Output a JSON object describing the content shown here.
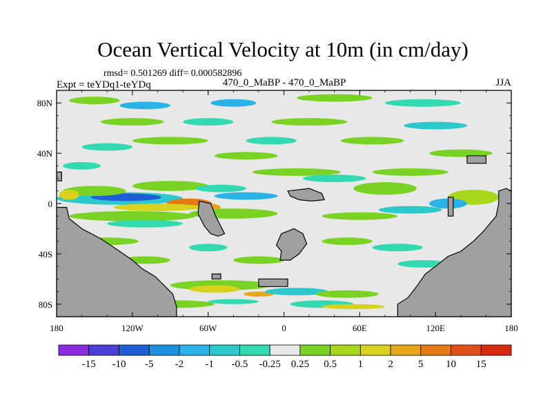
{
  "chart_data": {
    "type": "heatmap",
    "title": "Ocean Vertical Velocity at 10m (in cm/day)",
    "stats_line": "rmsd= 0.501269 diff= 0.000582896",
    "left_label": "Expt = teYDq1-teYDq",
    "center_label": "470_0_MaBP - 470_0_MaBP",
    "right_label": "JJA",
    "x_range": [
      -180,
      180
    ],
    "y_range": [
      -90,
      90
    ],
    "x_ticks": [
      {
        "value": -180,
        "label": "180"
      },
      {
        "value": -120,
        "label": "120W"
      },
      {
        "value": -60,
        "label": "60W"
      },
      {
        "value": 0,
        "label": "0"
      },
      {
        "value": 60,
        "label": "60E"
      },
      {
        "value": 120,
        "label": "120E"
      },
      {
        "value": 180,
        "label": "180"
      }
    ],
    "y_ticks": [
      {
        "value": 80,
        "label": "80N"
      },
      {
        "value": 40,
        "label": "40N"
      },
      {
        "value": 0,
        "label": "0"
      },
      {
        "value": -40,
        "label": "40S"
      },
      {
        "value": -80,
        "label": "80S"
      }
    ],
    "colorbar": {
      "labels": [
        "-15",
        "-10",
        "-5",
        "-2",
        "-1",
        "-0.5",
        "-0.25",
        "0.25",
        "0.5",
        "1",
        "2",
        "5",
        "10",
        "15"
      ],
      "colors": [
        "#8a2be2",
        "#4b3fd8",
        "#1f5fd6",
        "#1f8fe0",
        "#29b3e6",
        "#2cc8cc",
        "#33d9b0",
        "#e8e8e8",
        "#7ad324",
        "#a8d81c",
        "#d8d21c",
        "#e6a81a",
        "#e47a14",
        "#e0501a",
        "#d92a10"
      ]
    },
    "land_color": "#a0a0a0",
    "zero_band_color": "#e8e8e8",
    "regions": [
      {
        "name": "equatorial-upwelling-blue",
        "c": 5,
        "lon": -130,
        "lat": 4,
        "w": 50,
        "h": 5
      },
      {
        "name": "equatorial-strong-blue",
        "c": 2,
        "lon": -125,
        "lat": 5,
        "w": 28,
        "h": 3
      },
      {
        "name": "eq-blue-east",
        "c": 4,
        "lon": -30,
        "lat": 6,
        "w": 25,
        "h": 3
      },
      {
        "name": "eq-orange",
        "c": 12,
        "lon": -75,
        "lat": 0,
        "w": 18,
        "h": 4
      },
      {
        "name": "eq-orange-2",
        "c": 11,
        "lon": -60,
        "lat": -3,
        "w": 10,
        "h": 3
      },
      {
        "name": "eq-yellow",
        "c": 10,
        "lon": -100,
        "lat": -3,
        "w": 35,
        "h": 3
      },
      {
        "name": "eq-green-belt",
        "c": 8,
        "lon": -120,
        "lat": -10,
        "w": 50,
        "h": 4
      },
      {
        "name": "eq-green-belt-2",
        "c": 8,
        "lon": -40,
        "lat": -8,
        "w": 35,
        "h": 4
      },
      {
        "name": "eq-green-belt-3",
        "c": 8,
        "lon": -150,
        "lat": 10,
        "w": 25,
        "h": 4
      },
      {
        "name": "eq-green-belt-4",
        "c": 8,
        "lon": -90,
        "lat": 14,
        "w": 30,
        "h": 4
      },
      {
        "name": "eq-yellow-west",
        "c": 10,
        "lon": -170,
        "lat": 7,
        "w": 8,
        "h": 4
      },
      {
        "name": "eq-cyan-belt",
        "c": 6,
        "lon": -110,
        "lat": -16,
        "w": 30,
        "h": 3
      },
      {
        "name": "eq-cyan-belt-2",
        "c": 6,
        "lon": -50,
        "lat": 12,
        "w": 20,
        "h": 3
      },
      {
        "name": "io-green",
        "c": 8,
        "lon": 80,
        "lat": 12,
        "w": 25,
        "h": 5
      },
      {
        "name": "io-green-2",
        "c": 9,
        "lon": 150,
        "lat": 5,
        "w": 20,
        "h": 6
      },
      {
        "name": "io-blue",
        "c": 4,
        "lon": 130,
        "lat": 0,
        "w": 15,
        "h": 4
      },
      {
        "name": "io-cyan",
        "c": 5,
        "lon": 100,
        "lat": -5,
        "w": 25,
        "h": 3
      },
      {
        "name": "io-green-3",
        "c": 8,
        "lon": 60,
        "lat": -10,
        "w": 30,
        "h": 3
      },
      {
        "name": "io-cyan-2",
        "c": 6,
        "lon": 40,
        "lat": 20,
        "w": 25,
        "h": 3
      },
      {
        "name": "io-green-4",
        "c": 8,
        "lon": 100,
        "lat": 25,
        "w": 30,
        "h": 3
      },
      {
        "name": "io-green-5",
        "c": 8,
        "lon": 10,
        "lat": 25,
        "w": 35,
        "h": 3
      },
      {
        "name": "n-hemi-blue",
        "c": 4,
        "lon": -110,
        "lat": 78,
        "w": 20,
        "h": 3
      },
      {
        "name": "n-hemi-blue-2",
        "c": 4,
        "lon": -40,
        "lat": 80,
        "w": 18,
        "h": 3
      },
      {
        "name": "n-hemi-green",
        "c": 8,
        "lon": -150,
        "lat": 82,
        "w": 20,
        "h": 3
      },
      {
        "name": "n-hemi-green-2",
        "c": 8,
        "lon": 40,
        "lat": 84,
        "w": 30,
        "h": 3
      },
      {
        "name": "n-hemi-cyan",
        "c": 6,
        "lon": 110,
        "lat": 80,
        "w": 30,
        "h": 3
      },
      {
        "name": "n-hemi-green-3",
        "c": 8,
        "lon": -120,
        "lat": 65,
        "w": 25,
        "h": 3
      },
      {
        "name": "n-hemi-cyan-2",
        "c": 6,
        "lon": -60,
        "lat": 65,
        "w": 20,
        "h": 3
      },
      {
        "name": "n-hemi-green-4",
        "c": 8,
        "lon": 20,
        "lat": 65,
        "w": 30,
        "h": 3
      },
      {
        "name": "n-hemi-blue-3",
        "c": 5,
        "lon": 120,
        "lat": 62,
        "w": 25,
        "h": 3
      },
      {
        "name": "n-hemi-green-5",
        "c": 8,
        "lon": -90,
        "lat": 50,
        "w": 30,
        "h": 3
      },
      {
        "name": "n-hemi-cyan-3",
        "c": 6,
        "lon": -10,
        "lat": 50,
        "w": 20,
        "h": 3
      },
      {
        "name": "n-hemi-green-6",
        "c": 8,
        "lon": 70,
        "lat": 50,
        "w": 25,
        "h": 3
      },
      {
        "name": "n-hemi-cyan-4",
        "c": 6,
        "lon": -140,
        "lat": 45,
        "w": 20,
        "h": 3
      },
      {
        "name": "n-hemi-green-7",
        "c": 8,
        "lon": -30,
        "lat": 38,
        "w": 25,
        "h": 3
      },
      {
        "name": "n-hemi-green-8",
        "c": 8,
        "lon": 140,
        "lat": 40,
        "w": 25,
        "h": 3
      },
      {
        "name": "n-hemi-cyan-5",
        "c": 6,
        "lon": -160,
        "lat": 30,
        "w": 15,
        "h": 3
      },
      {
        "name": "s-hemi-green",
        "c": 8,
        "lon": -140,
        "lat": -30,
        "w": 25,
        "h": 3
      },
      {
        "name": "s-hemi-cyan",
        "c": 6,
        "lon": -60,
        "lat": -35,
        "w": 15,
        "h": 3
      },
      {
        "name": "s-hemi-green-2",
        "c": 8,
        "lon": 50,
        "lat": -30,
        "w": 20,
        "h": 3
      },
      {
        "name": "s-hemi-cyan-2",
        "c": 6,
        "lon": 90,
        "lat": -35,
        "w": 20,
        "h": 3
      },
      {
        "name": "s-hemi-green-3",
        "c": 8,
        "lon": -110,
        "lat": -45,
        "w": 20,
        "h": 3
      },
      {
        "name": "s-hemi-green-4",
        "c": 8,
        "lon": -20,
        "lat": -45,
        "w": 20,
        "h": 3
      },
      {
        "name": "s-hemi-cyan-3",
        "c": 6,
        "lon": 110,
        "lat": -48,
        "w": 20,
        "h": 3
      },
      {
        "name": "southern-green-band",
        "c": 8,
        "lon": -50,
        "lat": -65,
        "w": 40,
        "h": 4
      },
      {
        "name": "southern-yellow",
        "c": 10,
        "lon": -55,
        "lat": -68,
        "w": 20,
        "h": 3
      },
      {
        "name": "southern-orange",
        "c": 11,
        "lon": -20,
        "lat": -72,
        "w": 12,
        "h": 2
      },
      {
        "name": "southern-cyan",
        "c": 5,
        "lon": 10,
        "lat": -70,
        "w": 25,
        "h": 3
      },
      {
        "name": "southern-green-2",
        "c": 8,
        "lon": 50,
        "lat": -72,
        "w": 25,
        "h": 3
      },
      {
        "name": "southern-cyan-2",
        "c": 6,
        "lon": 30,
        "lat": -80,
        "w": 25,
        "h": 3
      },
      {
        "name": "southern-yellow-2",
        "c": 10,
        "lon": 55,
        "lat": -82,
        "w": 25,
        "h": 2
      },
      {
        "name": "southern-green-3",
        "c": 8,
        "lon": -85,
        "lat": -80,
        "w": 30,
        "h": 3
      },
      {
        "name": "southern-cyan-3",
        "c": 6,
        "lon": -40,
        "lat": -78,
        "w": 20,
        "h": 2
      },
      {
        "name": "southern-green-4",
        "c": 8,
        "lon": 130,
        "lat": -68,
        "w": 25,
        "h": 3
      },
      {
        "name": "southern-green-5",
        "c": 8,
        "lon": 170,
        "lat": -60,
        "w": 15,
        "h": 3
      }
    ],
    "land": [
      {
        "name": "land-southwest",
        "points": [
          [
            -180,
            -3
          ],
          [
            -172,
            -3
          ],
          [
            -170,
            -12
          ],
          [
            -160,
            -20
          ],
          [
            -145,
            -28
          ],
          [
            -130,
            -38
          ],
          [
            -120,
            -45
          ],
          [
            -112,
            -52
          ],
          [
            -102,
            -58
          ],
          [
            -95,
            -65
          ],
          [
            -88,
            -72
          ],
          [
            -85,
            -82
          ],
          [
            -85,
            -90
          ],
          [
            -180,
            -90
          ]
        ]
      },
      {
        "name": "land-southeast",
        "points": [
          [
            90,
            -90
          ],
          [
            90,
            -80
          ],
          [
            98,
            -75
          ],
          [
            105,
            -66
          ],
          [
            112,
            -56
          ],
          [
            120,
            -50
          ],
          [
            130,
            -42
          ],
          [
            140,
            -38
          ],
          [
            150,
            -30
          ],
          [
            158,
            -22
          ],
          [
            168,
            -10
          ],
          [
            170,
            0
          ],
          [
            170,
            10
          ],
          [
            176,
            12
          ],
          [
            180,
            10
          ],
          [
            180,
            -90
          ]
        ]
      },
      {
        "name": "land-central-south",
        "points": [
          [
            -67,
            2
          ],
          [
            -58,
            0
          ],
          [
            -54,
            -10
          ],
          [
            -50,
            -18
          ],
          [
            -47,
            -24
          ],
          [
            -52,
            -26
          ],
          [
            -58,
            -24
          ],
          [
            -63,
            -18
          ],
          [
            -66,
            -12
          ],
          [
            -68,
            -8
          ]
        ]
      },
      {
        "name": "land-south-island",
        "points": [
          [
            -2,
            -24
          ],
          [
            8,
            -20
          ],
          [
            15,
            -24
          ],
          [
            18,
            -32
          ],
          [
            12,
            -40
          ],
          [
            5,
            -45
          ],
          [
            -3,
            -45
          ],
          [
            -2,
            -38
          ],
          [
            -6,
            -33
          ]
        ]
      },
      {
        "name": "land-east-bar",
        "points": [
          [
            130,
            5
          ],
          [
            134,
            5
          ],
          [
            134,
            -10
          ],
          [
            130,
            -10
          ]
        ]
      },
      {
        "name": "land-strip-south",
        "points": [
          [
            -20,
            -60
          ],
          [
            3,
            -60
          ],
          [
            3,
            -66
          ],
          [
            -20,
            -66
          ]
        ]
      },
      {
        "name": "land-tiny-south",
        "points": [
          [
            -57,
            -56
          ],
          [
            -50,
            -56
          ],
          [
            -50,
            -60
          ],
          [
            -57,
            -60
          ]
        ]
      },
      {
        "name": "land-mid-north",
        "points": [
          [
            3,
            10
          ],
          [
            20,
            12
          ],
          [
            30,
            8
          ],
          [
            32,
            3
          ],
          [
            22,
            2
          ],
          [
            12,
            3
          ],
          [
            5,
            6
          ]
        ]
      },
      {
        "name": "land-north-small",
        "points": [
          [
            145,
            38
          ],
          [
            160,
            38
          ],
          [
            160,
            32
          ],
          [
            145,
            32
          ]
        ]
      },
      {
        "name": "land-west-strip",
        "points": [
          [
            -180,
            25
          ],
          [
            -176,
            25
          ],
          [
            -176,
            18
          ],
          [
            -180,
            18
          ]
        ]
      }
    ]
  }
}
